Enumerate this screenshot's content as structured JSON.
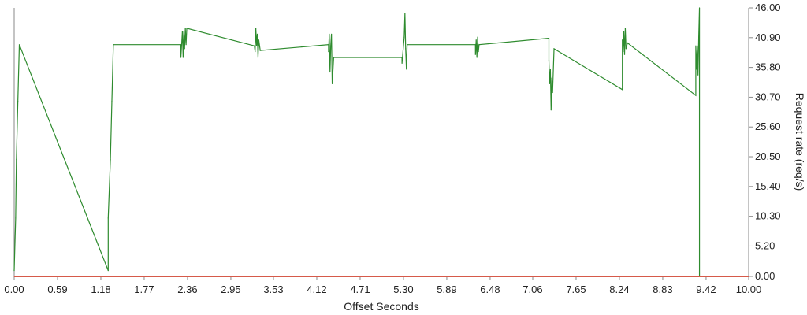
{
  "chart_data": {
    "type": "line",
    "title": "",
    "xlabel": "Offset Seconds",
    "ylabel": "Request rate (req/s)",
    "xlim": [
      0,
      10
    ],
    "ylim": [
      0,
      46
    ],
    "x_ticks": [
      "0.00",
      "0.59",
      "1.18",
      "1.77",
      "2.36",
      "2.95",
      "3.53",
      "4.12",
      "4.71",
      "5.30",
      "5.89",
      "6.48",
      "7.06",
      "7.65",
      "8.24",
      "8.83",
      "9.42",
      "10.00"
    ],
    "y_ticks": [
      "0.00",
      "5.20",
      "10.30",
      "15.40",
      "20.50",
      "25.60",
      "30.70",
      "35.80",
      "40.90",
      "46.00"
    ],
    "y_axis_side": "right",
    "grid": false,
    "series": [
      {
        "color": "#2e8b2e",
        "points": [
          [
            0.0,
            1.0
          ],
          [
            0.02,
            10.0
          ],
          [
            0.03,
            20.0
          ],
          [
            0.05,
            30.0
          ],
          [
            0.07,
            39.7
          ],
          [
            1.28,
            1.0
          ],
          [
            1.28,
            10.0
          ],
          [
            1.31,
            20.0
          ],
          [
            1.33,
            30.0
          ],
          [
            1.35,
            39.7
          ],
          [
            2.27,
            39.7
          ],
          [
            2.27,
            37.5
          ],
          [
            2.29,
            42.0
          ],
          [
            2.3,
            37.5
          ],
          [
            2.31,
            42.0
          ],
          [
            2.32,
            39.0
          ],
          [
            2.33,
            42.5
          ],
          [
            2.34,
            39.7
          ],
          [
            2.35,
            42.5
          ],
          [
            3.27,
            39.5
          ],
          [
            3.28,
            38.5
          ],
          [
            3.29,
            42.5
          ],
          [
            3.3,
            39.5
          ],
          [
            3.31,
            41.5
          ],
          [
            3.32,
            37.5
          ],
          [
            3.33,
            40.5
          ],
          [
            3.35,
            38.7
          ],
          [
            4.28,
            39.7
          ],
          [
            4.28,
            38.5
          ],
          [
            4.29,
            41.5
          ],
          [
            4.3,
            35.0
          ],
          [
            4.31,
            39.5
          ],
          [
            4.32,
            41.5
          ],
          [
            4.33,
            33.0
          ],
          [
            4.35,
            37.5
          ],
          [
            5.28,
            37.5
          ],
          [
            5.28,
            36.5
          ],
          [
            5.3,
            39.5
          ],
          [
            5.31,
            41.0
          ],
          [
            5.32,
            45.0
          ],
          [
            5.33,
            39.0
          ],
          [
            5.34,
            35.5
          ],
          [
            5.35,
            39.7
          ],
          [
            6.28,
            39.7
          ],
          [
            6.28,
            38.0
          ],
          [
            6.29,
            40.5
          ],
          [
            6.3,
            37.5
          ],
          [
            6.31,
            41.0
          ],
          [
            6.32,
            38.5
          ],
          [
            6.33,
            39.7
          ],
          [
            7.28,
            40.8
          ],
          [
            7.28,
            37.0
          ],
          [
            7.29,
            33.0
          ],
          [
            7.3,
            35.5
          ],
          [
            7.31,
            28.5
          ],
          [
            7.32,
            34.0
          ],
          [
            7.33,
            31.5
          ],
          [
            7.35,
            39.0
          ],
          [
            8.28,
            32.0
          ],
          [
            8.28,
            40.5
          ],
          [
            8.29,
            38.5
          ],
          [
            8.3,
            42.0
          ],
          [
            8.31,
            38.0
          ],
          [
            8.32,
            42.5
          ],
          [
            8.33,
            39.0
          ],
          [
            8.35,
            40.0
          ],
          [
            9.28,
            31.0
          ],
          [
            9.28,
            39.5
          ],
          [
            9.29,
            35.5
          ],
          [
            9.3,
            39.5
          ],
          [
            9.31,
            34.5
          ],
          [
            9.32,
            41.0
          ],
          [
            9.33,
            46.0
          ],
          [
            9.33,
            0.0
          ]
        ]
      },
      {
        "color": "#d65a4a",
        "points": [
          [
            0.0,
            0.0
          ],
          [
            10.0,
            0.0
          ]
        ]
      }
    ]
  }
}
